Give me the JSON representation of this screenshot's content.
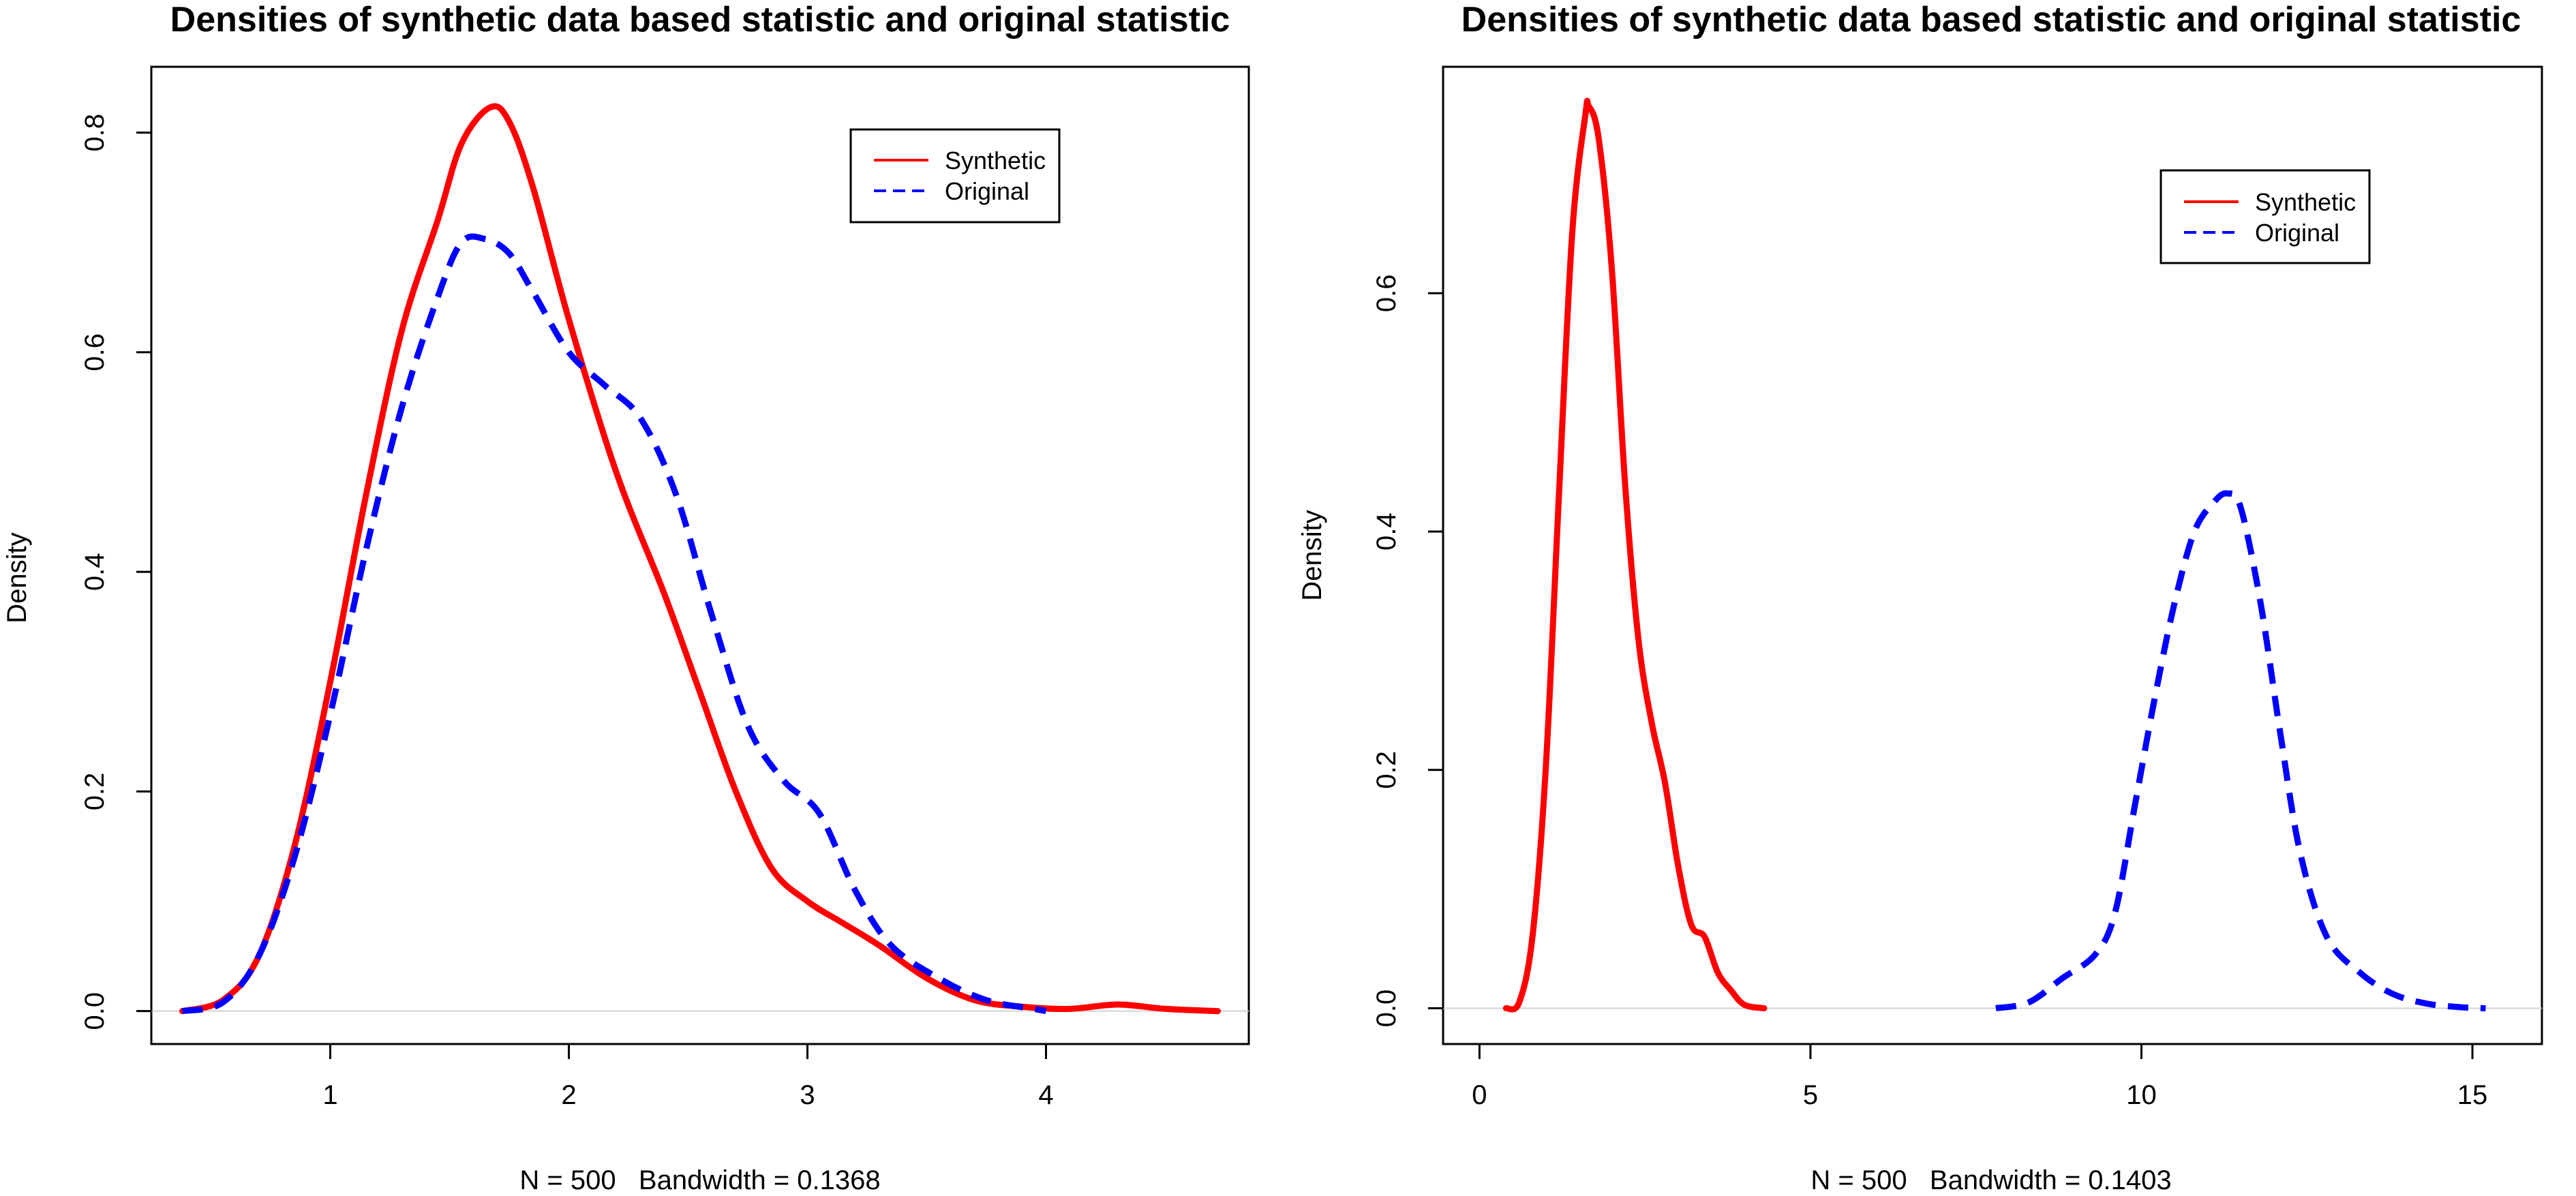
{
  "chart_data": [
    {
      "type": "line",
      "title": "Densities of synthetic data based statistic and original statistic",
      "xlabel": "N = 500   Bandwidth = 0.1368",
      "ylabel": "Density",
      "xlim": [
        0.25,
        4.85
      ],
      "ylim": [
        -0.03,
        0.86
      ],
      "x_ticks": [
        "1",
        "2",
        "3",
        "4"
      ],
      "y_ticks": [
        "0.0",
        "0.2",
        "0.4",
        "0.6",
        "0.8"
      ],
      "legend": {
        "position": "top-right",
        "entries": [
          "Synthetic",
          "Original"
        ]
      },
      "series": [
        {
          "name": "Synthetic",
          "color": "#ff0000",
          "style": "solid",
          "points": [
            [
              0.38,
              0.0
            ],
            [
              0.55,
              0.01
            ],
            [
              0.7,
              0.05
            ],
            [
              0.85,
              0.15
            ],
            [
              1.0,
              0.3
            ],
            [
              1.15,
              0.47
            ],
            [
              1.3,
              0.62
            ],
            [
              1.45,
              0.72
            ],
            [
              1.55,
              0.79
            ],
            [
              1.67,
              0.823
            ],
            [
              1.75,
              0.81
            ],
            [
              1.85,
              0.75
            ],
            [
              2.0,
              0.63
            ],
            [
              2.2,
              0.49
            ],
            [
              2.4,
              0.38
            ],
            [
              2.55,
              0.29
            ],
            [
              2.7,
              0.2
            ],
            [
              2.85,
              0.13
            ],
            [
              3.0,
              0.1
            ],
            [
              3.15,
              0.08
            ],
            [
              3.3,
              0.06
            ],
            [
              3.5,
              0.03
            ],
            [
              3.7,
              0.01
            ],
            [
              3.9,
              0.004
            ],
            [
              4.1,
              0.002
            ],
            [
              4.3,
              0.006
            ],
            [
              4.5,
              0.002
            ],
            [
              4.72,
              0.0
            ]
          ]
        },
        {
          "name": "Original",
          "color": "#0000ff",
          "style": "dashed",
          "points": [
            [
              0.38,
              0.0
            ],
            [
              0.55,
              0.008
            ],
            [
              0.7,
              0.05
            ],
            [
              0.85,
              0.14
            ],
            [
              1.0,
              0.27
            ],
            [
              1.15,
              0.42
            ],
            [
              1.3,
              0.55
            ],
            [
              1.45,
              0.65
            ],
            [
              1.55,
              0.7
            ],
            [
              1.65,
              0.703
            ],
            [
              1.75,
              0.69
            ],
            [
              1.85,
              0.655
            ],
            [
              2.0,
              0.6
            ],
            [
              2.15,
              0.57
            ],
            [
              2.3,
              0.54
            ],
            [
              2.45,
              0.47
            ],
            [
              2.6,
              0.36
            ],
            [
              2.75,
              0.26
            ],
            [
              2.9,
              0.21
            ],
            [
              3.05,
              0.18
            ],
            [
              3.2,
              0.11
            ],
            [
              3.35,
              0.06
            ],
            [
              3.55,
              0.03
            ],
            [
              3.75,
              0.01
            ],
            [
              3.95,
              0.002
            ],
            [
              4.0,
              0.0
            ]
          ]
        }
      ]
    },
    {
      "type": "line",
      "title": "Densities of synthetic data based statistic and original statistic",
      "xlabel": "N = 500   Bandwidth = 0.1403",
      "ylabel": "Density",
      "xlim": [
        -0.55,
        16.05
      ],
      "ylim": [
        -0.03,
        0.79
      ],
      "x_ticks": [
        "0",
        "5",
        "10",
        "15"
      ],
      "y_ticks": [
        "0.0",
        "0.2",
        "0.4",
        "0.6"
      ],
      "legend": {
        "position": "top-right",
        "entries": [
          "Synthetic",
          "Original"
        ]
      },
      "series": [
        {
          "name": "Synthetic",
          "color": "#ff0000",
          "style": "solid",
          "points": [
            [
              0.4,
              0.0
            ],
            [
              0.6,
              0.005
            ],
            [
              0.8,
              0.06
            ],
            [
              1.0,
              0.2
            ],
            [
              1.2,
              0.43
            ],
            [
              1.4,
              0.65
            ],
            [
              1.6,
              0.75
            ],
            [
              1.65,
              0.757
            ],
            [
              1.8,
              0.73
            ],
            [
              2.0,
              0.62
            ],
            [
              2.2,
              0.44
            ],
            [
              2.4,
              0.31
            ],
            [
              2.6,
              0.24
            ],
            [
              2.8,
              0.19
            ],
            [
              3.0,
              0.12
            ],
            [
              3.2,
              0.07
            ],
            [
              3.4,
              0.06
            ],
            [
              3.6,
              0.03
            ],
            [
              3.8,
              0.015
            ],
            [
              4.0,
              0.003
            ],
            [
              4.3,
              0.0
            ]
          ]
        },
        {
          "name": "Original",
          "color": "#0000ff",
          "style": "dashed",
          "points": [
            [
              7.8,
              0.0
            ],
            [
              8.3,
              0.005
            ],
            [
              8.8,
              0.025
            ],
            [
              9.3,
              0.045
            ],
            [
              9.6,
              0.08
            ],
            [
              9.9,
              0.17
            ],
            [
              10.2,
              0.26
            ],
            [
              10.5,
              0.34
            ],
            [
              10.8,
              0.4
            ],
            [
              11.1,
              0.425
            ],
            [
              11.3,
              0.432
            ],
            [
              11.5,
              0.42
            ],
            [
              11.8,
              0.34
            ],
            [
              12.1,
              0.23
            ],
            [
              12.4,
              0.13
            ],
            [
              12.8,
              0.06
            ],
            [
              13.3,
              0.03
            ],
            [
              13.8,
              0.012
            ],
            [
              14.3,
              0.004
            ],
            [
              14.8,
              0.001
            ],
            [
              15.2,
              0.0
            ]
          ]
        }
      ]
    }
  ]
}
